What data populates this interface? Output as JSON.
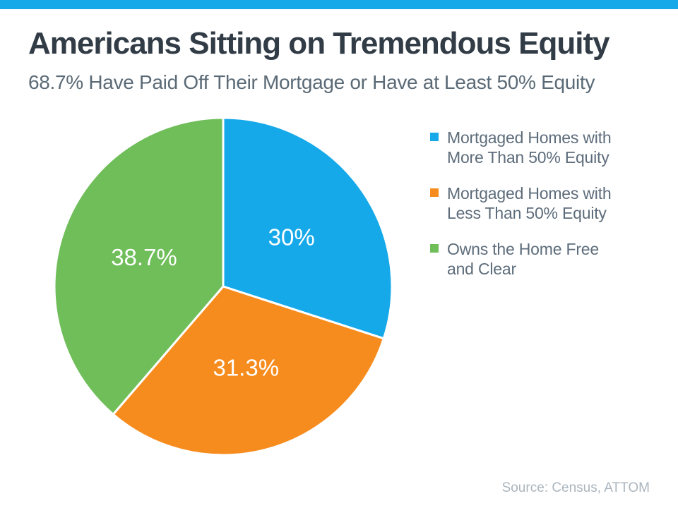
{
  "page": {
    "background_color": "#ffffff",
    "accent_bar_color": "#16a9e9"
  },
  "header": {
    "title": "Americans Sitting on Tremendous Equity",
    "subtitle": "68.7% Have Paid Off Their Mortgage or Have at Least 50% Equity"
  },
  "footer": {
    "source": "Source: Census, ATTOM"
  },
  "chart_data": {
    "type": "pie",
    "title": "Americans Sitting on Tremendous Equity",
    "subtitle": "68.7% Have Paid Off Their Mortgage or Have at Least 50% Equity",
    "start_angle_deg": -90,
    "direction": "clockwise",
    "legend_position": "right",
    "label_radius_fraction": 0.5,
    "slice_gap_color": "#ffffff",
    "slices": [
      {
        "label": "Mortgaged Homes with More Than 50% Equity",
        "label_lines": [
          "Mortgaged Homes with",
          "More Than 50% Equity"
        ],
        "value": 30,
        "display_value": "30%",
        "color": "#16a9e9"
      },
      {
        "label": "Mortgaged Homes with Less Than 50% Equity",
        "label_lines": [
          "Mortgaged Homes with",
          "Less Than 50% Equity"
        ],
        "value": 31.3,
        "display_value": "31.3%",
        "color": "#f78c1e"
      },
      {
        "label": "Owns the Home Free and Clear",
        "label_lines": [
          "Owns the Home Free",
          "and Clear"
        ],
        "value": 38.7,
        "display_value": "38.7%",
        "color": "#6fbe59"
      }
    ],
    "source": "Source: Census, ATTOM"
  }
}
